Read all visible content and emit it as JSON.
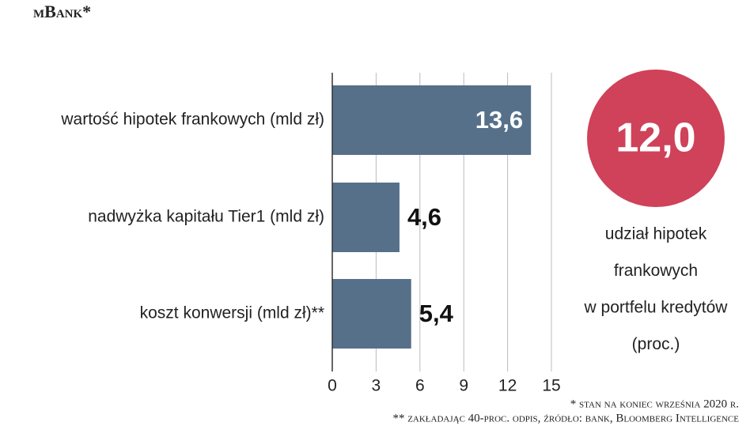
{
  "chart_data": {
    "type": "hbar",
    "title": "mBank*",
    "categories": [
      "wartość hipotek frankowych (mld zł)",
      "nadwyżka kapitału Tier1 (mld zł)",
      "koszt konwersji (mld zł)**"
    ],
    "values": [
      13.6,
      4.6,
      5.4
    ],
    "value_labels": [
      "13,6",
      "4,6",
      "5,4"
    ],
    "color": "#56708a",
    "xlim": [
      0,
      15
    ],
    "xticks": [
      0,
      3,
      6,
      9,
      12,
      15
    ],
    "grid": true,
    "highlight": {
      "label": "12,0",
      "color": "#cf4259",
      "caption": [
        "udział hipotek",
        "frankowych",
        "w portfelu kredytów",
        "(proc.)"
      ]
    },
    "footnotes": [
      "* stan na koniec września 2020 r.",
      "** zakładając 40-proc. odpis, źródło: bank, Bloomberg Intelligence"
    ]
  }
}
